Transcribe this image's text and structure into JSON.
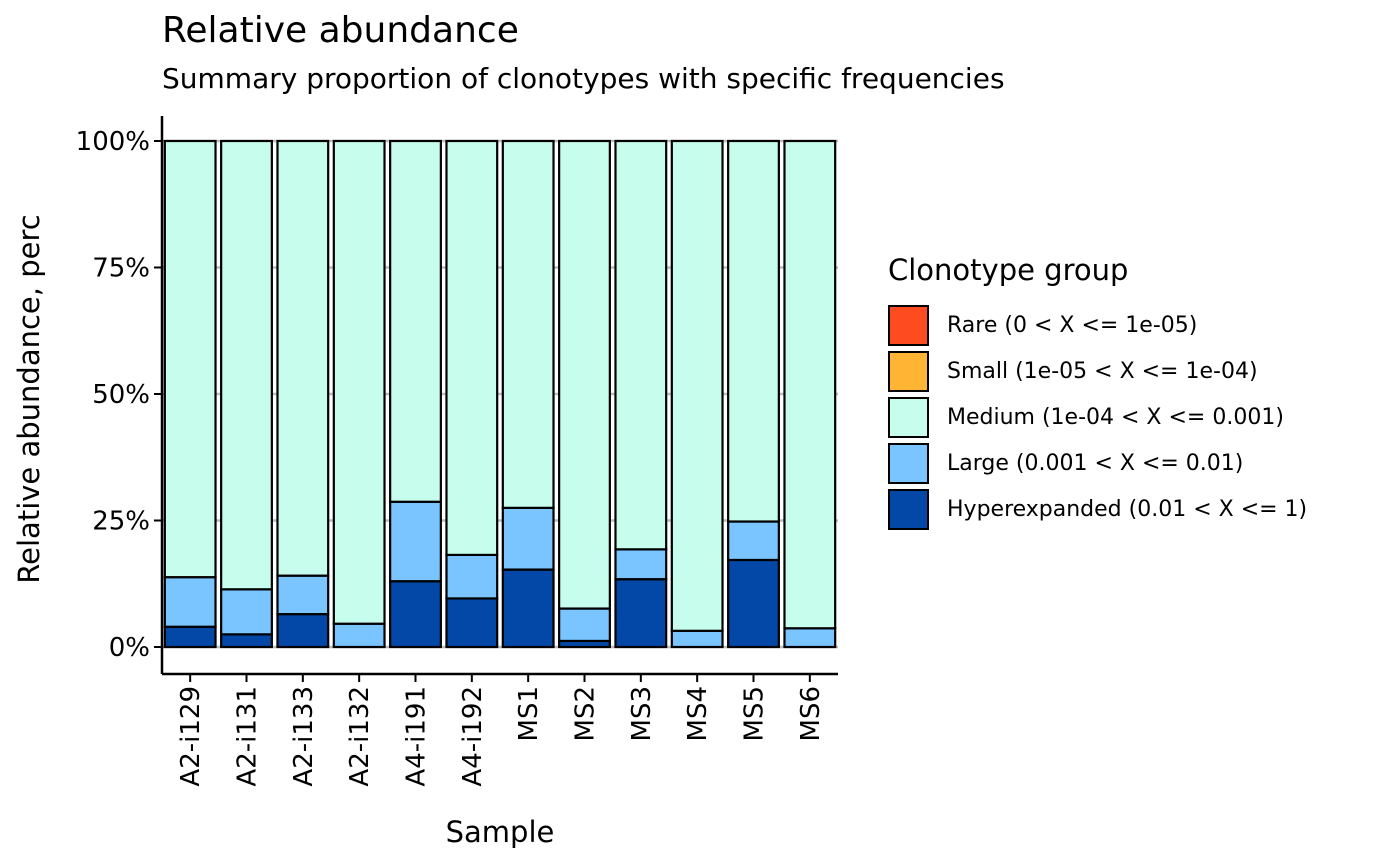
{
  "chart_data": {
    "type": "bar",
    "stacked": true,
    "title": "Relative abundance",
    "subtitle": "Summary proportion of clonotypes with specific frequencies",
    "xlabel": "Sample",
    "ylabel": "Relative abundance, perc",
    "ylim": [
      0,
      1
    ],
    "yticks": [
      0,
      0.25,
      0.5,
      0.75,
      1
    ],
    "ytick_labels": [
      "0%",
      "25%",
      "50%",
      "75%",
      "100%"
    ],
    "grid": "horizontal major",
    "legend_position": "right",
    "legend_title": "Clonotype group",
    "categories": [
      "A2-i129",
      "A2-i131",
      "A2-i133",
      "A2-i132",
      "A4-i191",
      "A4-i192",
      "MS1",
      "MS2",
      "MS3",
      "MS4",
      "MS5",
      "MS6"
    ],
    "series": [
      {
        "name": "Rare (0 < X <= 1e-05)",
        "color": "#FF4B20",
        "values": [
          0,
          0,
          0,
          0,
          0,
          0,
          0,
          0,
          0,
          0,
          0,
          0
        ]
      },
      {
        "name": "Small (1e-05 < X <= 1e-04)",
        "color": "#FFB433",
        "values": [
          0,
          0,
          0,
          0,
          0,
          0,
          0,
          0,
          0,
          0,
          0,
          0
        ]
      },
      {
        "name": "Medium (1e-04 < X <= 0.001)",
        "color": "#C6FDEC",
        "values": [
          0.862,
          0.886,
          0.859,
          0.954,
          0.713,
          0.818,
          0.725,
          0.924,
          0.807,
          0.968,
          0.752,
          0.963
        ]
      },
      {
        "name": "Large (0.001 < X <= 0.01)",
        "color": "#7AC5FF",
        "values": [
          0.098,
          0.089,
          0.076,
          0.046,
          0.157,
          0.086,
          0.122,
          0.064,
          0.059,
          0.032,
          0.076,
          0.037
        ]
      },
      {
        "name": "Hyperexpanded (0.01 < X <= 1)",
        "color": "#0348A6",
        "values": [
          0.04,
          0.025,
          0.065,
          0.0,
          0.13,
          0.096,
          0.153,
          0.012,
          0.134,
          0.0,
          0.172,
          0.0
        ]
      }
    ]
  }
}
